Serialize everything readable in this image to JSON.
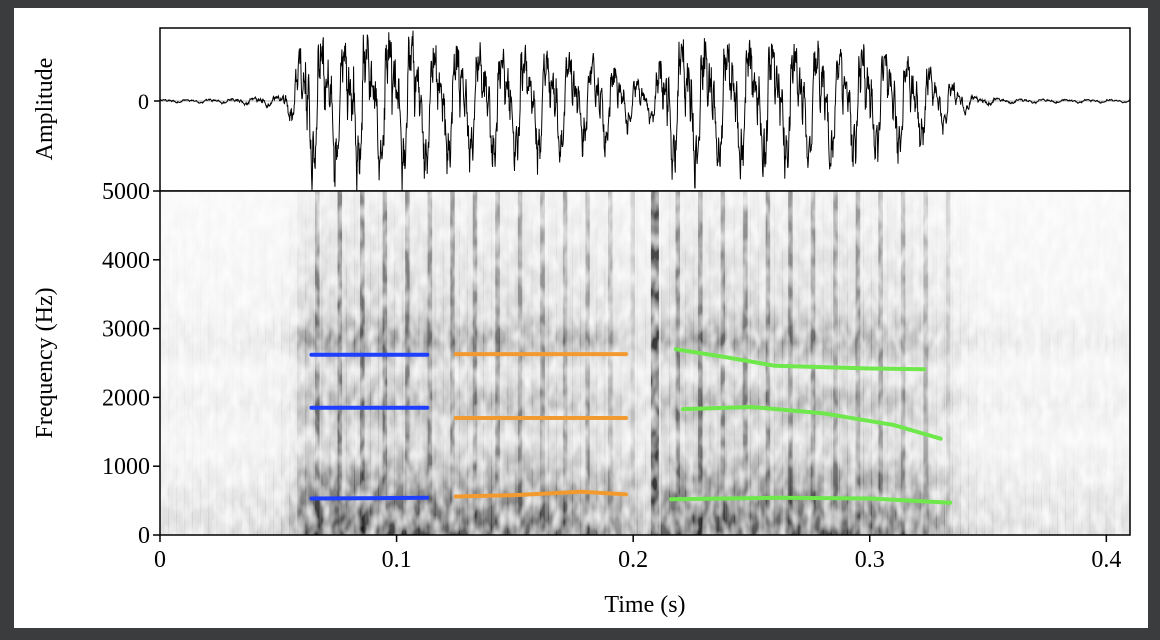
{
  "chart_data": [
    {
      "type": "line",
      "panel": "waveform",
      "ylabel": "Amplitude",
      "y_ticks": [
        "0"
      ],
      "xlim": [
        0,
        0.41
      ],
      "ylim": [
        -1,
        1
      ],
      "grid": false,
      "series": [
        {
          "envelope": [
            {
              "t": 0.0,
              "a": 0.02
            },
            {
              "t": 0.03,
              "a": 0.03
            },
            {
              "t": 0.05,
              "a": 0.08
            },
            {
              "t": 0.056,
              "a": 0.25
            },
            {
              "t": 0.06,
              "a": 0.9
            },
            {
              "t": 0.08,
              "a": 1.0
            },
            {
              "t": 0.1,
              "a": 0.95
            },
            {
              "t": 0.12,
              "a": 0.8
            },
            {
              "t": 0.16,
              "a": 0.75
            },
            {
              "t": 0.19,
              "a": 0.55
            },
            {
              "t": 0.2,
              "a": 0.3
            },
            {
              "t": 0.208,
              "a": 0.25
            },
            {
              "t": 0.215,
              "a": 0.9
            },
            {
              "t": 0.25,
              "a": 0.85
            },
            {
              "t": 0.29,
              "a": 0.8
            },
            {
              "t": 0.32,
              "a": 0.6
            },
            {
              "t": 0.335,
              "a": 0.25
            },
            {
              "t": 0.345,
              "a": 0.06
            },
            {
              "t": 0.36,
              "a": 0.03
            },
            {
              "t": 0.41,
              "a": 0.02
            }
          ],
          "pitch_hz": 105
        }
      ]
    },
    {
      "type": "heatmap",
      "panel": "spectrogram",
      "xlabel": "Time (s)",
      "ylabel": "Frequency (Hz)",
      "xlim": [
        0,
        0.41
      ],
      "ylim": [
        0,
        5000
      ],
      "x_ticks": [
        "0",
        "0.1",
        "0.2",
        "0.3",
        "0.4"
      ],
      "y_ticks": [
        "0",
        "1000",
        "2000",
        "3000",
        "4000",
        "5000"
      ],
      "colormap": "grayscale (white = low, black = high)",
      "grid": false,
      "formant_tracks": [
        {
          "color": "#1f3fff",
          "points": [
            {
              "x": 0.064,
              "y": 2620
            },
            {
              "x": 0.113,
              "y": 2620
            }
          ]
        },
        {
          "color": "#1f3fff",
          "points": [
            {
              "x": 0.064,
              "y": 1850
            },
            {
              "x": 0.113,
              "y": 1850
            }
          ]
        },
        {
          "color": "#1f3fff",
          "points": [
            {
              "x": 0.064,
              "y": 530
            },
            {
              "x": 0.113,
              "y": 540
            }
          ]
        },
        {
          "color": "#f39a2f",
          "points": [
            {
              "x": 0.125,
              "y": 2630
            },
            {
              "x": 0.197,
              "y": 2630
            }
          ]
        },
        {
          "color": "#f39a2f",
          "points": [
            {
              "x": 0.125,
              "y": 1700
            },
            {
              "x": 0.197,
              "y": 1700
            }
          ]
        },
        {
          "color": "#f39a2f",
          "points": [
            {
              "x": 0.125,
              "y": 560
            },
            {
              "x": 0.15,
              "y": 580
            },
            {
              "x": 0.178,
              "y": 630
            },
            {
              "x": 0.197,
              "y": 590
            }
          ]
        },
        {
          "color": "#6ee84a",
          "points": [
            {
              "x": 0.218,
              "y": 2700
            },
            {
              "x": 0.24,
              "y": 2580
            },
            {
              "x": 0.26,
              "y": 2460
            },
            {
              "x": 0.3,
              "y": 2420
            },
            {
              "x": 0.323,
              "y": 2410
            }
          ]
        },
        {
          "color": "#6ee84a",
          "points": [
            {
              "x": 0.221,
              "y": 1830
            },
            {
              "x": 0.25,
              "y": 1860
            },
            {
              "x": 0.28,
              "y": 1770
            },
            {
              "x": 0.31,
              "y": 1600
            },
            {
              "x": 0.33,
              "y": 1400
            }
          ]
        },
        {
          "color": "#6ee84a",
          "points": [
            {
              "x": 0.216,
              "y": 520
            },
            {
              "x": 0.26,
              "y": 540
            },
            {
              "x": 0.3,
              "y": 530
            },
            {
              "x": 0.334,
              "y": 470
            }
          ]
        }
      ]
    }
  ]
}
